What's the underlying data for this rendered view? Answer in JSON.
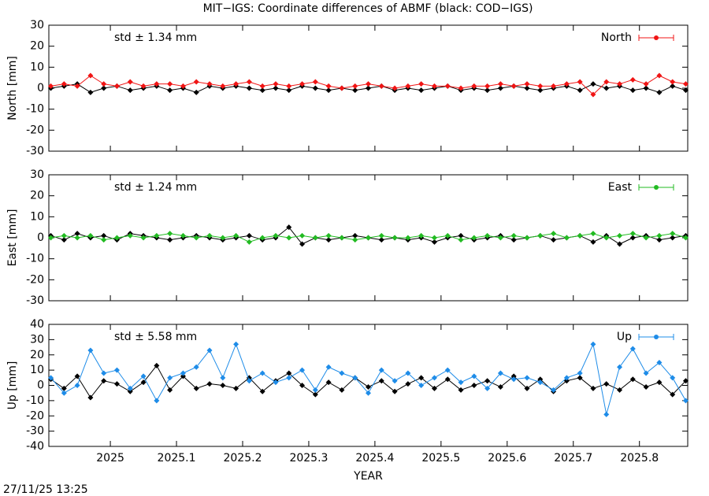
{
  "title": "MIT−IGS: Coordinate differences of ABMF (black: COD−IGS)",
  "footer": "27/11/25 13:25",
  "chart_data": [
    {
      "type": "line",
      "ylabel": "North [mm]",
      "annotation": "std ± 1.34 mm",
      "xlim": [
        2024.907,
        2025.873
      ],
      "xticks": [
        2025,
        2025.1,
        2025.2,
        2025.3,
        2025.4,
        2025.5,
        2025.6,
        2025.7,
        2025.8
      ],
      "ylim": [
        -30,
        30
      ],
      "yticks": [
        -30,
        -20,
        -10,
        0,
        10,
        20,
        30
      ],
      "x": [
        2024.91,
        2024.93,
        2024.95,
        2024.97,
        2024.99,
        2025.01,
        2025.03,
        2025.05,
        2025.07,
        2025.09,
        2025.11,
        2025.13,
        2025.15,
        2025.17,
        2025.19,
        2025.21,
        2025.23,
        2025.25,
        2025.27,
        2025.29,
        2025.31,
        2025.33,
        2025.35,
        2025.37,
        2025.39,
        2025.41,
        2025.43,
        2025.45,
        2025.47,
        2025.49,
        2025.51,
        2025.53,
        2025.55,
        2025.57,
        2025.59,
        2025.61,
        2025.63,
        2025.65,
        2025.67,
        2025.69,
        2025.71,
        2025.73,
        2025.75,
        2025.77,
        2025.79,
        2025.81,
        2025.83,
        2025.85,
        2025.87
      ],
      "series": [
        {
          "color": "#000000",
          "values": [
            0,
            1,
            2,
            -2,
            0,
            1,
            -1,
            0,
            1,
            -1,
            0,
            -2,
            1,
            0,
            1,
            0,
            -1,
            0,
            -1,
            1,
            0,
            -1,
            0,
            -1,
            0,
            1,
            -1,
            0,
            -1,
            0,
            1,
            -1,
            0,
            -1,
            0,
            1,
            0,
            -1,
            0,
            1,
            -1,
            2,
            0,
            1,
            -1,
            0,
            -2,
            1,
            -1
          ]
        },
        {
          "name": "North",
          "color": "#f01414",
          "values": [
            1,
            2,
            1,
            6,
            2,
            1,
            3,
            1,
            2,
            2,
            1,
            3,
            2,
            1,
            2,
            3,
            1,
            2,
            1,
            2,
            3,
            1,
            0,
            1,
            2,
            1,
            0,
            1,
            2,
            1,
            1,
            0,
            1,
            1,
            2,
            1,
            2,
            1,
            1,
            2,
            3,
            -3,
            3,
            2,
            4,
            2,
            6,
            3,
            2
          ]
        }
      ]
    },
    {
      "type": "line",
      "ylabel": "East [mm]",
      "annotation": "std ± 1.24 mm",
      "xlim": [
        2024.907,
        2025.873
      ],
      "xticks": [
        2025,
        2025.1,
        2025.2,
        2025.3,
        2025.4,
        2025.5,
        2025.6,
        2025.7,
        2025.8
      ],
      "ylim": [
        -30,
        30
      ],
      "yticks": [
        -30,
        -20,
        -10,
        0,
        10,
        20,
        30
      ],
      "x": [
        2024.91,
        2024.93,
        2024.95,
        2024.97,
        2024.99,
        2025.01,
        2025.03,
        2025.05,
        2025.07,
        2025.09,
        2025.11,
        2025.13,
        2025.15,
        2025.17,
        2025.19,
        2025.21,
        2025.23,
        2025.25,
        2025.27,
        2025.29,
        2025.31,
        2025.33,
        2025.35,
        2025.37,
        2025.39,
        2025.41,
        2025.43,
        2025.45,
        2025.47,
        2025.49,
        2025.51,
        2025.53,
        2025.55,
        2025.57,
        2025.59,
        2025.61,
        2025.63,
        2025.65,
        2025.67,
        2025.69,
        2025.71,
        2025.73,
        2025.75,
        2025.77,
        2025.79,
        2025.81,
        2025.83,
        2025.85,
        2025.87
      ],
      "series": [
        {
          "color": "#000000",
          "values": [
            1,
            -1,
            2,
            0,
            1,
            -1,
            2,
            1,
            0,
            -1,
            0,
            1,
            0,
            -1,
            0,
            1,
            -1,
            0,
            5,
            -3,
            0,
            -1,
            0,
            1,
            0,
            -1,
            0,
            -1,
            0,
            -2,
            0,
            1,
            -1,
            0,
            1,
            -1,
            0,
            1,
            -1,
            0,
            1,
            -2,
            1,
            -3,
            0,
            1,
            -1,
            0,
            1
          ]
        },
        {
          "name": "East",
          "color": "#22bb22",
          "values": [
            0,
            1,
            0,
            1,
            -1,
            0,
            1,
            0,
            1,
            2,
            1,
            0,
            1,
            0,
            1,
            -2,
            0,
            1,
            0,
            1,
            0,
            1,
            0,
            -1,
            0,
            1,
            0,
            0,
            1,
            0,
            1,
            -1,
            0,
            1,
            0,
            1,
            0,
            1,
            2,
            0,
            1,
            2,
            0,
            1,
            2,
            0,
            1,
            2,
            0
          ]
        }
      ]
    },
    {
      "type": "line",
      "ylabel": "Up [mm]",
      "annotation": "std ± 5.58 mm",
      "xlabel": "YEAR",
      "xlim": [
        2024.907,
        2025.873
      ],
      "xticks": [
        2025,
        2025.1,
        2025.2,
        2025.3,
        2025.4,
        2025.5,
        2025.6,
        2025.7,
        2025.8
      ],
      "ylim": [
        -40,
        40
      ],
      "yticks": [
        -40,
        -30,
        -20,
        -10,
        0,
        10,
        20,
        30,
        40
      ],
      "x": [
        2024.91,
        2024.93,
        2024.95,
        2024.97,
        2024.99,
        2025.01,
        2025.03,
        2025.05,
        2025.07,
        2025.09,
        2025.11,
        2025.13,
        2025.15,
        2025.17,
        2025.19,
        2025.21,
        2025.23,
        2025.25,
        2025.27,
        2025.29,
        2025.31,
        2025.33,
        2025.35,
        2025.37,
        2025.39,
        2025.41,
        2025.43,
        2025.45,
        2025.47,
        2025.49,
        2025.51,
        2025.53,
        2025.55,
        2025.57,
        2025.59,
        2025.61,
        2025.63,
        2025.65,
        2025.67,
        2025.69,
        2025.71,
        2025.73,
        2025.75,
        2025.77,
        2025.79,
        2025.81,
        2025.83,
        2025.85,
        2025.87
      ],
      "series": [
        {
          "color": "#000000",
          "values": [
            4,
            -2,
            6,
            -8,
            3,
            1,
            -4,
            2,
            13,
            -3,
            6,
            -2,
            1,
            0,
            -2,
            5,
            -4,
            3,
            8,
            0,
            -6,
            2,
            -3,
            5,
            -1,
            3,
            -4,
            1,
            5,
            -2,
            4,
            -3,
            0,
            3,
            -1,
            6,
            -2,
            4,
            -4,
            3,
            5,
            -2,
            1,
            -3,
            4,
            -1,
            2,
            -6,
            3
          ]
        },
        {
          "name": "Up",
          "color": "#1e8ce8",
          "values": [
            5,
            -5,
            0,
            23,
            8,
            10,
            -2,
            6,
            -10,
            5,
            8,
            12,
            23,
            5,
            27,
            3,
            8,
            2,
            5,
            10,
            -3,
            12,
            8,
            5,
            -5,
            10,
            3,
            8,
            0,
            5,
            10,
            2,
            6,
            -2,
            8,
            4,
            5,
            2,
            -3,
            5,
            8,
            27,
            -19,
            12,
            24,
            8,
            15,
            5,
            -10
          ]
        }
      ]
    }
  ]
}
